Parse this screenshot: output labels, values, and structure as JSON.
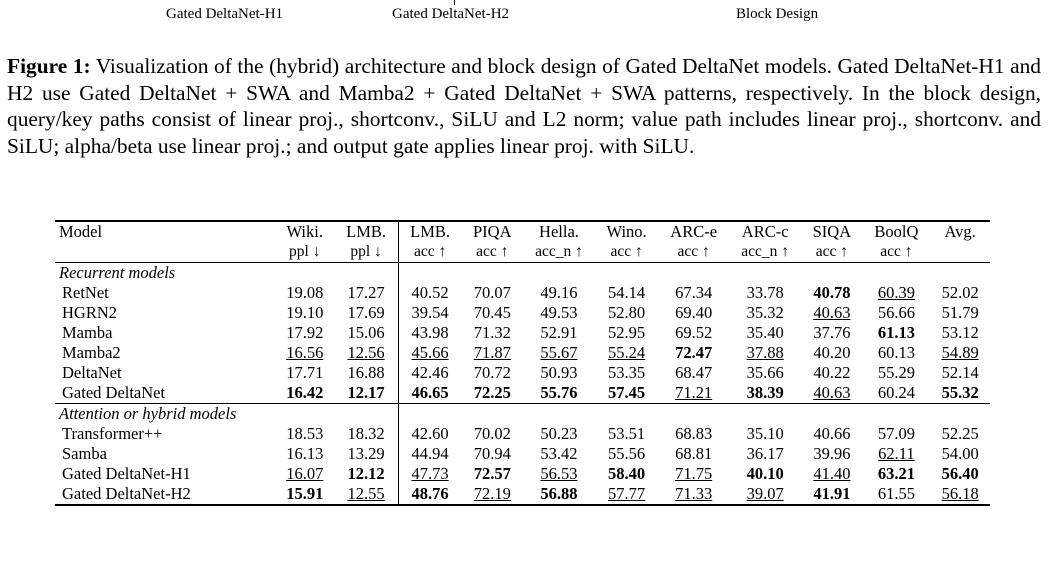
{
  "figure_labels": [
    "Gated DeltaNet-H1",
    "Gated DeltaNet-H2",
    "Block Design"
  ],
  "caption": {
    "label": "Figure 1:",
    "text": "Visualization of the (hybrid) architecture and block design of Gated DeltaNet models. Gated DeltaNet-H1 and H2 use Gated DeltaNet + SWA and Mamba2 + Gated DeltaNet + SWA patterns, respectively. In the block design, query/key paths consist of linear proj., shortconv., SiLU and L2 norm; value path includes linear proj., shortconv. and SiLU; alpha/beta use linear proj.; and output gate applies linear proj. with SiLU."
  },
  "table": {
    "model_header": "Model",
    "columns": [
      {
        "name": "Wiki.",
        "metric": "ppl ↓"
      },
      {
        "name": "LMB.",
        "metric": "ppl ↓"
      },
      {
        "name": "LMB.",
        "metric": "acc ↑"
      },
      {
        "name": "PIQA",
        "metric": "acc ↑"
      },
      {
        "name": "Hella.",
        "metric": "acc_n ↑"
      },
      {
        "name": "Wino.",
        "metric": "acc ↑"
      },
      {
        "name": "ARC-e",
        "metric": "acc ↑"
      },
      {
        "name": "ARC-c",
        "metric": "acc_n ↑"
      },
      {
        "name": "SIQA",
        "metric": "acc ↑"
      },
      {
        "name": "BoolQ",
        "metric": "acc ↑"
      },
      {
        "name": "Avg.",
        "metric": ""
      }
    ],
    "sections": [
      {
        "title": "Recurrent models",
        "rows": [
          {
            "model": "RetNet",
            "values": [
              "19.08",
              "17.27",
              "40.52",
              "70.07",
              "49.16",
              "54.14",
              "67.34",
              "33.78",
              "40.78",
              "60.39",
              "52.02"
            ]
          },
          {
            "model": "HGRN2",
            "values": [
              "19.10",
              "17.69",
              "39.54",
              "70.45",
              "49.53",
              "52.80",
              "69.40",
              "35.32",
              "40.63",
              "56.66",
              "51.79"
            ]
          },
          {
            "model": "Mamba",
            "values": [
              "17.92",
              "15.06",
              "43.98",
              "71.32",
              "52.91",
              "52.95",
              "69.52",
              "35.40",
              "37.76",
              "61.13",
              "53.12"
            ]
          },
          {
            "model": "Mamba2",
            "values": [
              "16.56",
              "12.56",
              "45.66",
              "71.87",
              "55.67",
              "55.24",
              "72.47",
              "37.88",
              "40.20",
              "60.13",
              "54.89"
            ]
          },
          {
            "model": "DeltaNet",
            "values": [
              "17.71",
              "16.88",
              "42.46",
              "70.72",
              "50.93",
              "53.35",
              "68.47",
              "35.66",
              "40.22",
              "55.29",
              "52.14"
            ]
          },
          {
            "model": "Gated DeltaNet",
            "values": [
              "16.42",
              "12.17",
              "46.65",
              "72.25",
              "55.76",
              "57.45",
              "71.21",
              "38.39",
              "40.63",
              "60.24",
              "55.32"
            ]
          }
        ]
      },
      {
        "title": "Attention or hybrid models",
        "rows": [
          {
            "model": "Transformer++",
            "values": [
              "18.53",
              "18.32",
              "42.60",
              "70.02",
              "50.23",
              "53.51",
              "68.83",
              "35.10",
              "40.66",
              "57.09",
              "52.25"
            ]
          },
          {
            "model": "Samba",
            "values": [
              "16.13",
              "13.29",
              "44.94",
              "70.94",
              "53.42",
              "55.56",
              "68.81",
              "36.17",
              "39.96",
              "62.11",
              "54.00"
            ]
          },
          {
            "model": "Gated DeltaNet-H1",
            "values": [
              "16.07",
              "12.12",
              "47.73",
              "72.57",
              "56.53",
              "58.40",
              "71.75",
              "40.10",
              "41.40",
              "63.21",
              "56.40"
            ]
          },
          {
            "model": "Gated DeltaNet-H2",
            "values": [
              "15.91",
              "12.55",
              "48.76",
              "72.19",
              "56.88",
              "57.77",
              "71.33",
              "39.07",
              "41.91",
              "61.55",
              "56.18"
            ]
          }
        ]
      }
    ]
  }
}
